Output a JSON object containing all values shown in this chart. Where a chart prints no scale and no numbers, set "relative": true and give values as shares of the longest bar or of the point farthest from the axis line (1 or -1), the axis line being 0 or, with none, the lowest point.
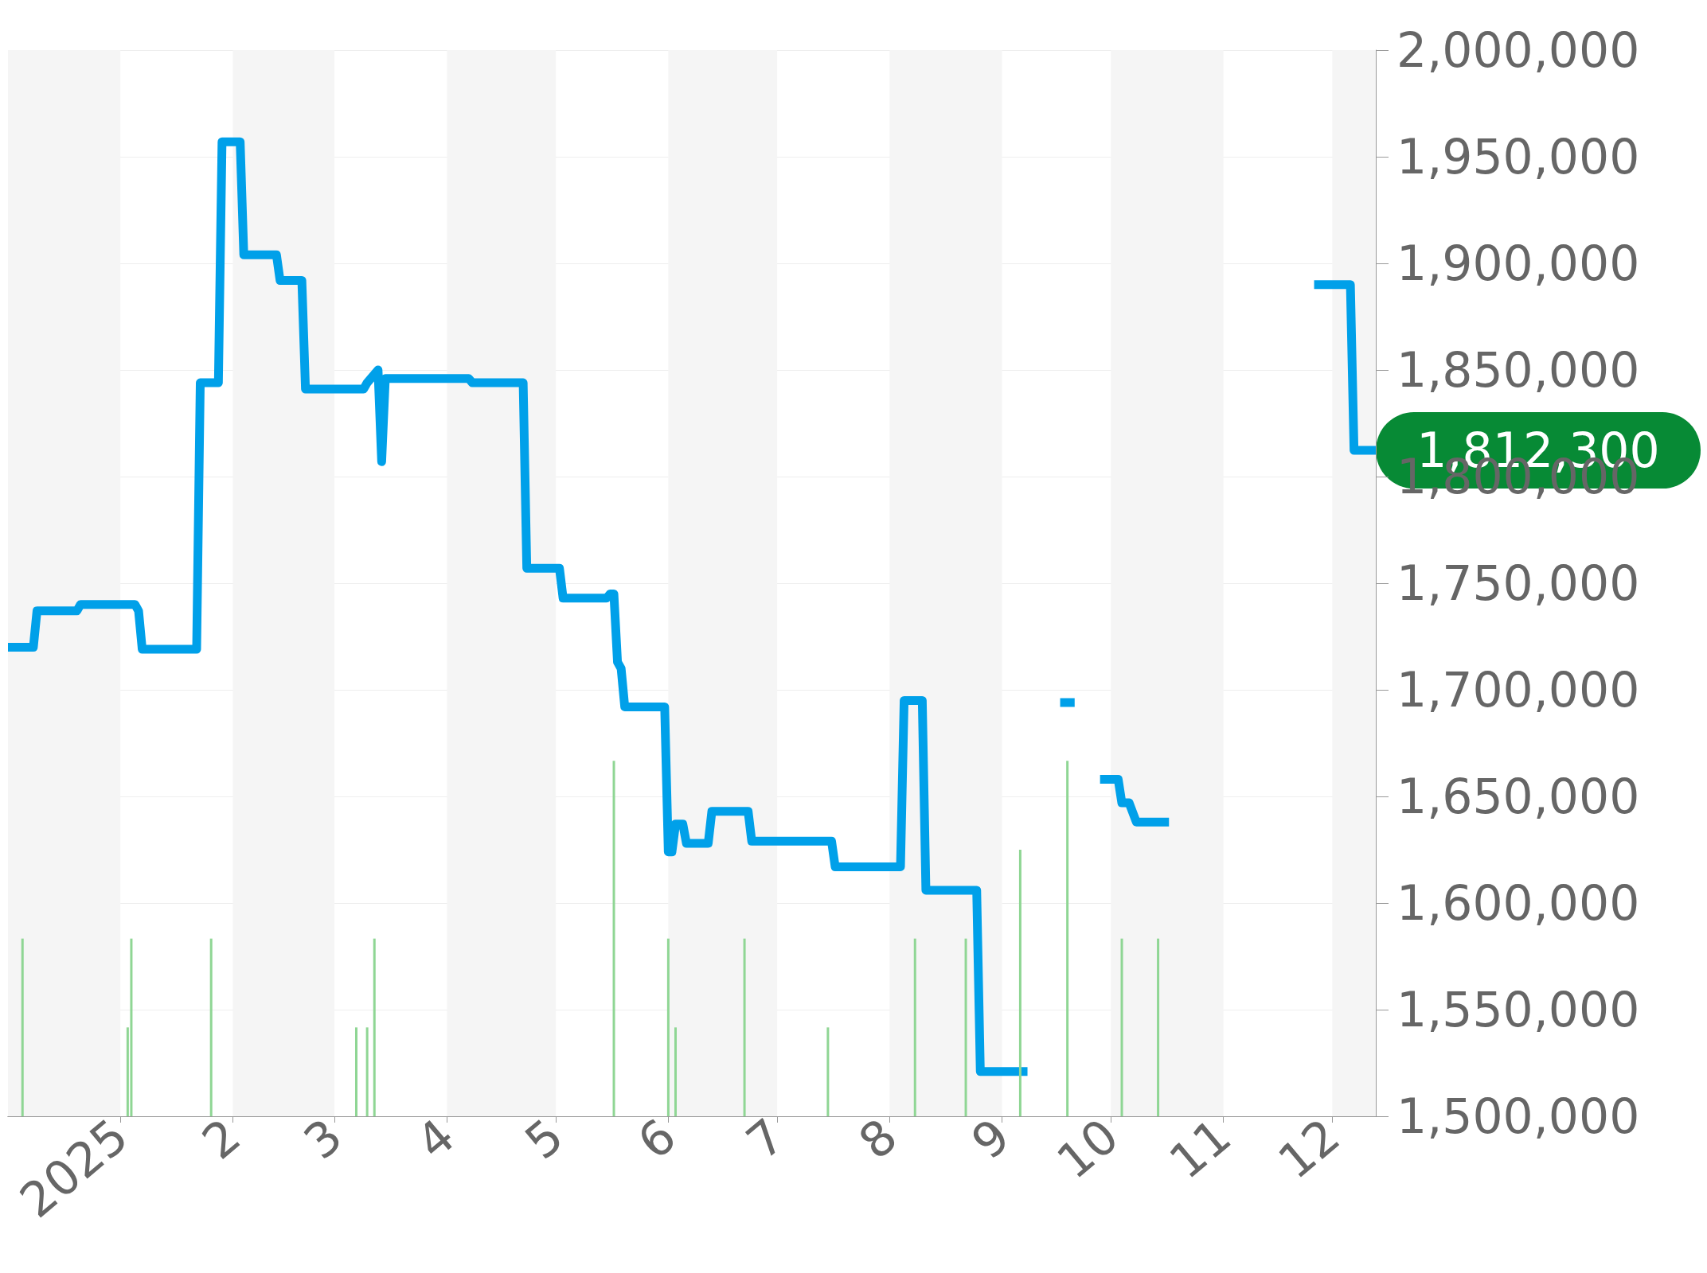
{
  "chart_data": [
    {
      "type": "line",
      "xlim": [
        "2024-12-01",
        "2025-12-13"
      ],
      "xticks": [
        {
          "value": "2025-01-01",
          "label": "2025"
        },
        {
          "value": "2025-02-01",
          "label": "2"
        },
        {
          "value": "2025-03-01",
          "label": "3"
        },
        {
          "value": "2025-04-01",
          "label": "4"
        },
        {
          "value": "2025-05-01",
          "label": "5"
        },
        {
          "value": "2025-06-01",
          "label": "6"
        },
        {
          "value": "2025-07-01",
          "label": "7"
        },
        {
          "value": "2025-08-01",
          "label": "8"
        },
        {
          "value": "2025-09-01",
          "label": "9"
        },
        {
          "value": "2025-10-01",
          "label": "10"
        },
        {
          "value": "2025-11-01",
          "label": "11"
        },
        {
          "value": "2025-12-01",
          "label": "12"
        }
      ],
      "ylim": [
        1500000,
        2000000
      ],
      "yticks": [
        {
          "value": 1500000,
          "label": "1,500,000"
        },
        {
          "value": 1550000,
          "label": "1,550,000"
        },
        {
          "value": 1600000,
          "label": "1,600,000"
        },
        {
          "value": 1650000,
          "label": "1,650,000"
        },
        {
          "value": 1700000,
          "label": "1,700,000"
        },
        {
          "value": 1750000,
          "label": "1,750,000"
        },
        {
          "value": 1800000,
          "label": "1,800,000"
        },
        {
          "value": 1850000,
          "label": "1,850,000"
        },
        {
          "value": 1900000,
          "label": "1,900,000"
        },
        {
          "value": 1950000,
          "label": "1,950,000"
        },
        {
          "value": 2000000,
          "label": "2,000,000"
        }
      ],
      "grid": "y",
      "marker": "none",
      "line_style": "solid",
      "bands": [
        {
          "axis": "x",
          "from": "2024-12-01",
          "to": "2025-01-01",
          "color": "#f5f5f5"
        },
        {
          "axis": "x",
          "from": "2025-02-01",
          "to": "2025-03-01",
          "color": "#f5f5f5"
        },
        {
          "axis": "x",
          "from": "2025-04-01",
          "to": "2025-05-01",
          "color": "#f5f5f5"
        },
        {
          "axis": "x",
          "from": "2025-06-01",
          "to": "2025-07-01",
          "color": "#f5f5f5"
        },
        {
          "axis": "x",
          "from": "2025-08-01",
          "to": "2025-09-01",
          "color": "#f5f5f5"
        },
        {
          "axis": "x",
          "from": "2025-10-01",
          "to": "2025-11-01",
          "color": "#f5f5f5"
        },
        {
          "axis": "x",
          "from": "2025-12-01",
          "to": "2025-12-13",
          "color": "#f5f5f5"
        }
      ],
      "annotations": [
        {
          "text": "1,812,300",
          "x": "2025-12-13",
          "y": 1812300
        }
      ],
      "series": [
        {
          "color": "#00a0e9",
          "x": [
            "2024-12-01",
            "2024-12-08",
            "2024-12-09",
            "2024-12-20",
            "2024-12-21",
            "2025-01-05",
            "2025-01-06",
            "2025-01-07",
            "2025-01-22",
            "2025-01-23",
            "2025-01-28",
            "2025-01-29",
            "2025-02-03",
            "2025-02-04",
            "2025-02-13",
            "2025-02-14",
            "2025-02-20",
            "2025-02-21",
            "2025-03-09",
            "2025-03-10",
            "2025-03-13",
            "2025-03-14",
            "2025-03-15",
            "2025-04-07",
            "2025-04-08",
            "2025-04-22",
            "2025-04-23",
            "2025-05-02",
            "2025-05-03",
            "2025-05-15",
            "2025-05-16",
            "2025-05-17",
            "2025-05-18",
            "2025-05-19",
            "2025-05-20",
            "2025-05-31",
            "2025-06-01",
            "2025-06-02",
            "2025-06-03",
            "2025-06-05",
            "2025-06-06",
            "2025-06-12",
            "2025-06-13",
            "2025-06-23",
            "2025-06-24",
            "2025-07-16",
            "2025-07-17",
            "2025-08-04",
            "2025-08-05",
            "2025-08-10",
            "2025-08-11",
            "2025-08-25",
            "2025-08-26",
            "2025-09-08",
            "2025-09-12",
            "2025-09-17",
            "2025-09-21",
            "2025-09-25",
            "2025-09-28",
            "2025-10-03",
            "2025-10-04",
            "2025-10-06",
            "2025-10-08",
            "2025-10-17",
            "2025-10-20",
            "2025-11-26",
            "2025-12-06",
            "2025-12-07",
            "2025-12-13"
          ],
          "values": [
            1720000,
            1720000,
            1737000,
            1737000,
            1740000,
            1740000,
            1737000,
            1719000,
            1719000,
            1844000,
            1844000,
            1957000,
            1957000,
            1904000,
            1904000,
            1892000,
            1892000,
            1841000,
            1841000,
            1844000,
            1850000,
            1807000,
            1846000,
            1846000,
            1844000,
            1844000,
            1757000,
            1757000,
            1743000,
            1743000,
            1745000,
            1745000,
            1713000,
            1710000,
            1692000,
            1692000,
            1624000,
            1624000,
            1637000,
            1637000,
            1628000,
            1628000,
            1643000,
            1643000,
            1629000,
            1629000,
            1617000,
            1617000,
            1695000,
            1695000,
            1606000,
            1606000,
            1521000,
            1521000,
            null,
            1694000,
            1694000,
            null,
            1658000,
            1658000,
            1647000,
            1647000,
            1638000,
            1638000,
            null,
            1890000,
            1890000,
            1812300,
            1812300
          ]
        }
      ]
    },
    {
      "type": "bar",
      "relative": true,
      "xlim": [
        "2024-12-01",
        "2025-12-13"
      ],
      "series": [
        {
          "color": "#8fd694",
          "x": [
            "2024-12-05",
            "2025-01-03",
            "2025-01-04",
            "2025-01-26",
            "2025-03-07",
            "2025-03-10",
            "2025-03-12",
            "2025-05-17",
            "2025-06-01",
            "2025-06-03",
            "2025-06-22",
            "2025-07-15",
            "2025-08-08",
            "2025-08-22",
            "2025-09-06",
            "2025-09-19",
            "2025-10-04",
            "2025-10-14"
          ],
          "values": [
            0.5,
            0.25,
            0.5,
            0.5,
            0.25,
            0.25,
            0.5,
            1,
            0.5,
            0.25,
            0.5,
            0.25,
            0.5,
            0.5,
            0.75,
            1,
            0.5,
            0.5
          ]
        }
      ]
    }
  ]
}
